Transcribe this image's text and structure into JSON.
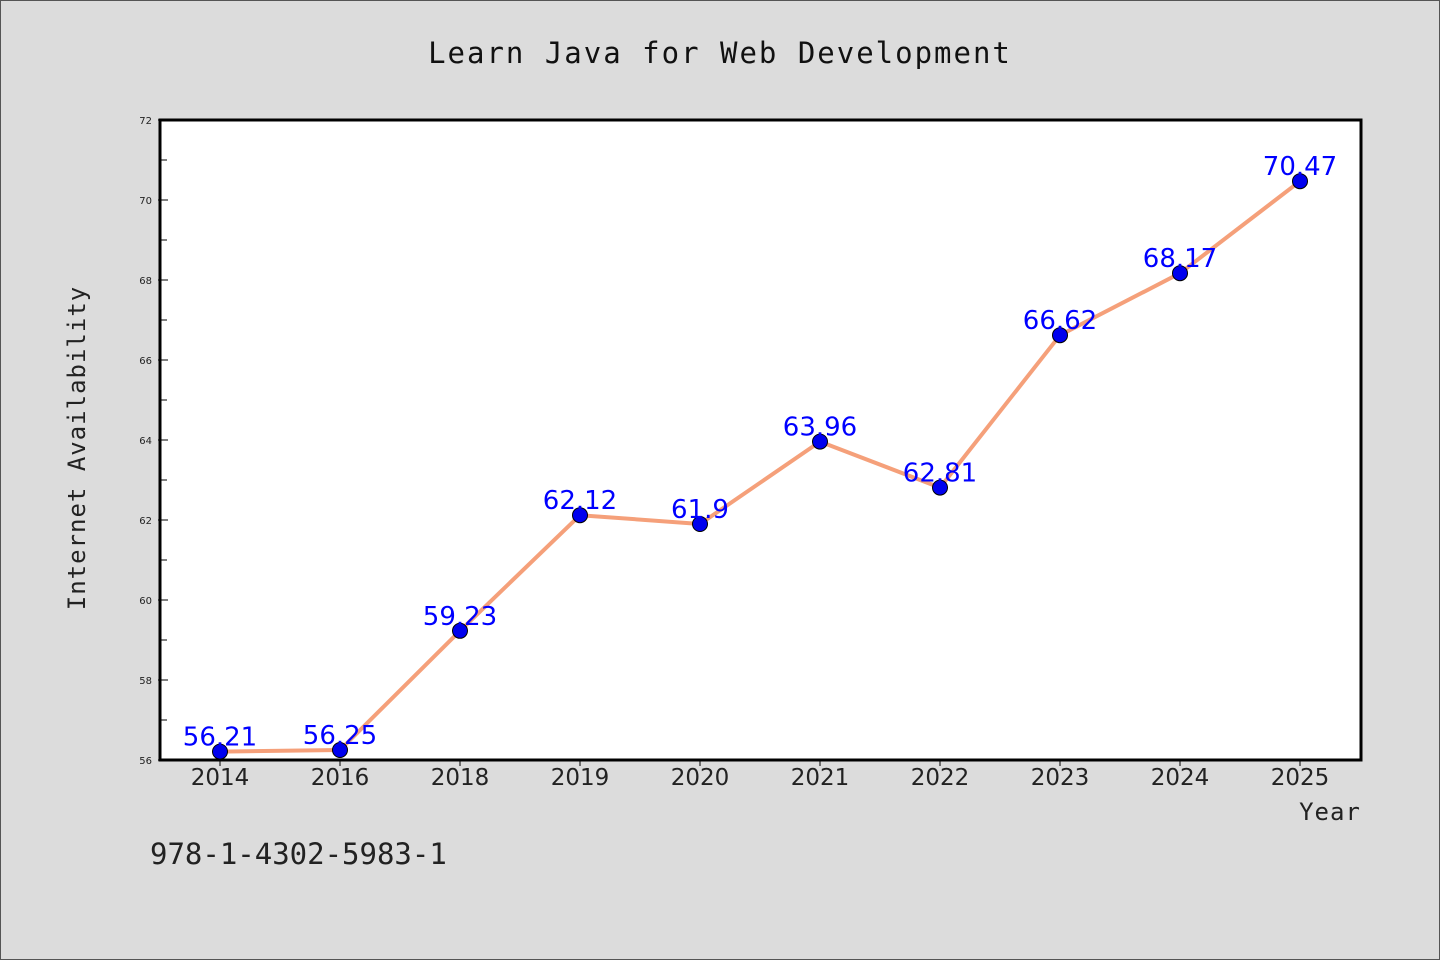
{
  "chart_data": {
    "type": "line",
    "title": "Learn Java for Web Development",
    "xlabel": "Year",
    "ylabel": "Internet Availability",
    "categories": [
      "2014",
      "2016",
      "2018",
      "2019",
      "2020",
      "2021",
      "2022",
      "2023",
      "2024",
      "2025"
    ],
    "series": [
      {
        "values": [
          56.21,
          56.25,
          59.23,
          62.12,
          61.9,
          63.96,
          62.81,
          66.62,
          68.17,
          70.47
        ],
        "data_labels": [
          "56.21",
          "56.25",
          "59.23",
          "62.12",
          "61.9",
          "63.96",
          "62.81",
          "66.62",
          "68.17",
          "70.47"
        ],
        "line_color": "#f5a07a",
        "marker_color": "#0000ee",
        "label_color": "#0000ff"
      }
    ],
    "ylim": [
      56,
      72
    ],
    "yticks": [
      "56",
      "58",
      "60",
      "62",
      "64",
      "66",
      "68",
      "70",
      "72"
    ],
    "grid": false,
    "legend": "none"
  },
  "footer_text": "978-1-4302-5983-1",
  "colors": {
    "background": "#dcdcdc",
    "plot_background": "#ffffff",
    "line": "#f5a07a",
    "marker": "#0000ee"
  }
}
